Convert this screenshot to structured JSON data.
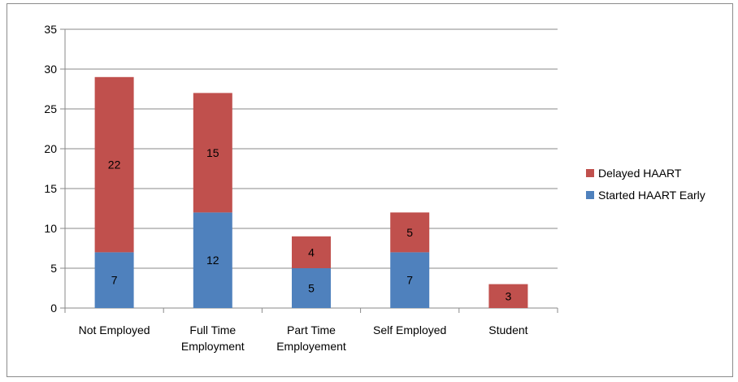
{
  "chart_data": {
    "type": "bar",
    "stacked": true,
    "title": "",
    "xlabel": "",
    "ylabel": "",
    "categories": [
      [
        "Not Employed"
      ],
      [
        "Full Time",
        "Employment"
      ],
      [
        "Part Time",
        "Employement"
      ],
      [
        "Self Employed"
      ],
      [
        "Student"
      ]
    ],
    "series": [
      {
        "name": "Started HAART Early",
        "color": "#4f81bd",
        "values": [
          7,
          12,
          5,
          7,
          0
        ]
      },
      {
        "name": "Delayed HAART",
        "color": "#c0504d",
        "values": [
          22,
          15,
          4,
          5,
          3
        ]
      }
    ],
    "ylim": [
      0,
      35
    ],
    "yticks": [
      0,
      5,
      10,
      15,
      20,
      25,
      30,
      35
    ],
    "grid": true,
    "data_labels": true,
    "legend": {
      "position": "right",
      "order": [
        "Delayed HAART",
        "Started HAART Early"
      ]
    }
  }
}
